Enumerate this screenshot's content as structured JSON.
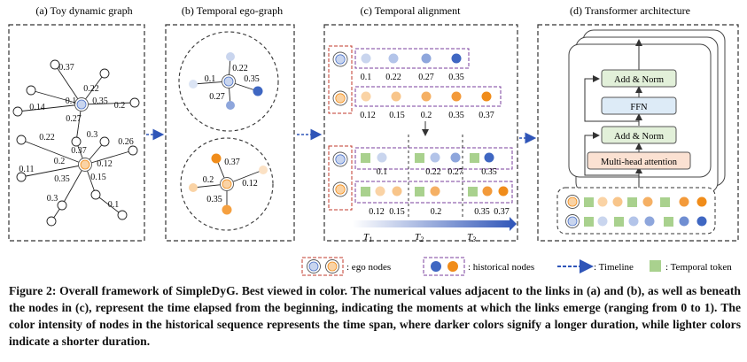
{
  "panels": {
    "a": "(a) Toy dynamic graph",
    "b": "(b) Temporal ego-graph",
    "c": "(c) Temporal alignment",
    "d": "(d) Transformer architecture"
  },
  "graph_a_labels": [
    "0.37",
    "0.22",
    "0.1",
    "0.35",
    "0.2",
    "0.14",
    "0.27",
    "0.3",
    "0.22",
    "0.37",
    "0.26",
    "0.2",
    "0.12",
    "0.11",
    "0.35",
    "0.15",
    "0.3",
    "0.1"
  ],
  "ego_b_top_labels": [
    "0.22",
    "0.1",
    "0.35",
    "0.27"
  ],
  "ego_b_bottom_labels": [
    "0.37",
    "0.2",
    "0.12",
    "0.35"
  ],
  "alignment": {
    "seq1_times": [
      "0.1",
      "0.22",
      "0.27",
      "0.35"
    ],
    "seq2_times": [
      "0.12",
      "0.15",
      "0.2",
      "0.35",
      "0.37"
    ],
    "aligned1_times": [
      "0.1",
      "0.22",
      "0.27",
      "0.35"
    ],
    "aligned2_times": [
      "0.12",
      "0.15",
      "0.2",
      "0.35",
      "0.37"
    ],
    "timeline_labels": [
      "T",
      "T",
      "T"
    ],
    "timeline_subs": [
      "1",
      "2",
      "3"
    ]
  },
  "transformer": {
    "add_norm_top": "Add & Norm",
    "ffn": "FFN",
    "add_norm_bottom": "Add & Norm",
    "attention": "Multi-head attention"
  },
  "legend": {
    "ego": ": ego nodes",
    "historical": ": historical nodes",
    "timeline": ": Timeline",
    "token": ": Temporal token"
  },
  "caption": "Figure 2: Overall framework of SimpleDyG. Best viewed in color. The numerical values adjacent to the links in (a) and (b), as well as beneath the nodes in (c), represent the time elapsed from the beginning, indicating the moments at which the links emerge (ranging from 0 to 1). The color intensity of nodes in the historical sequence represents the time span, where darker colors signify a longer duration, while lighter colors indicate a shorter duration.",
  "colors": {
    "blue_dark": "#4d73c7",
    "blue_mid": "#8ea6dc",
    "blue_light": "#c9d5ee",
    "orange_dark": "#f08c1a",
    "orange_mid": "#f5b064",
    "orange_light": "#fad3a5",
    "token_green": "#a9d18e",
    "purple_dash": "#7a3f9d",
    "red_dash": "#c0392b",
    "block_pink": "#fbe1d2",
    "block_green": "#e2f0d9",
    "block_blue": "#ddebf7"
  }
}
